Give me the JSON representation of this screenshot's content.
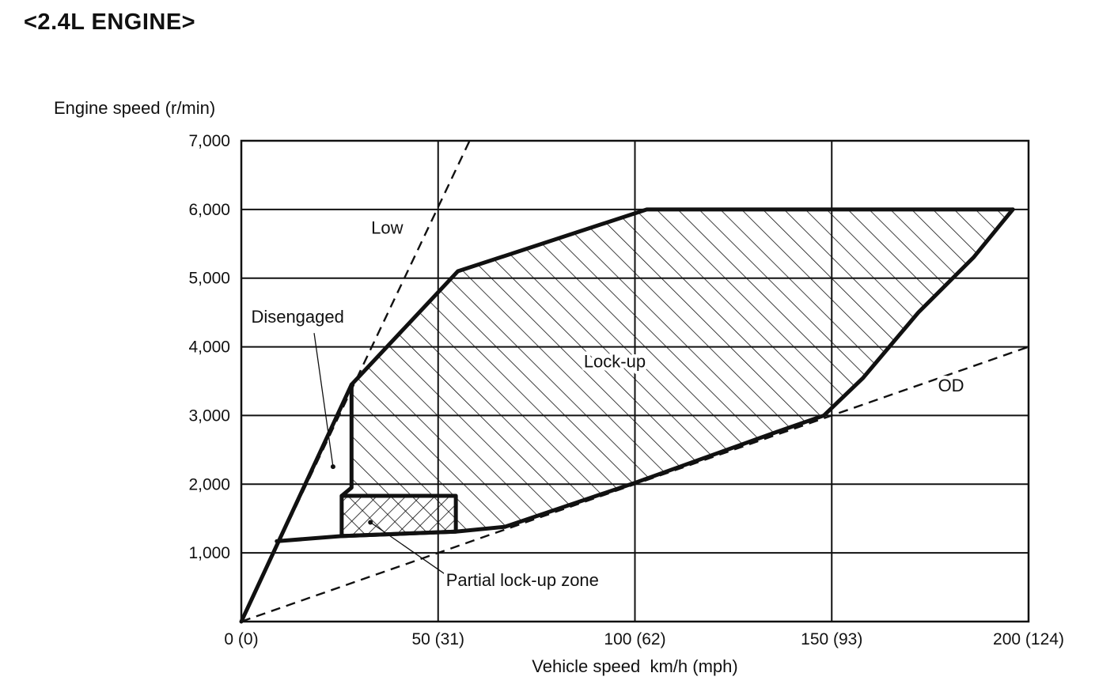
{
  "chart_data": {
    "type": "line",
    "title": "<2.4L ENGINE>",
    "xlabel": "Vehicle speed  km/h (mph)",
    "ylabel": "Engine speed (r/min)",
    "xlim": [
      0,
      200
    ],
    "ylim": [
      0,
      7000
    ],
    "grid": true,
    "legend": "none",
    "x_ticks": [
      {
        "value": 0,
        "label": "0 (0)"
      },
      {
        "value": 50,
        "label": "50 (31)"
      },
      {
        "value": 100,
        "label": "100 (62)"
      },
      {
        "value": 150,
        "label": "150 (93)"
      },
      {
        "value": 200,
        "label": "200 (124)"
      }
    ],
    "y_ticks": [
      {
        "value": 1000,
        "label": "1,000"
      },
      {
        "value": 2000,
        "label": "2,000"
      },
      {
        "value": 3000,
        "label": "3,000"
      },
      {
        "value": 4000,
        "label": "4,000"
      },
      {
        "value": 5000,
        "label": "5,000"
      },
      {
        "value": 6000,
        "label": "6,000"
      },
      {
        "value": 7000,
        "label": "7,000"
      }
    ],
    "regions": [
      {
        "name": "lock-up-zone",
        "label": "Lock-up",
        "fill": "hatch-down",
        "points": [
          [
            28,
            3450
          ],
          [
            55,
            5100
          ],
          [
            103,
            6000
          ],
          [
            196,
            6000
          ],
          [
            186,
            5300
          ],
          [
            172,
            4500
          ],
          [
            158,
            3550
          ],
          [
            148,
            3000
          ],
          [
            136,
            2760
          ],
          [
            100,
            2020
          ],
          [
            67,
            1380
          ],
          [
            54.5,
            1310
          ],
          [
            25.5,
            1245
          ],
          [
            25.5,
            1830
          ],
          [
            28,
            1950
          ]
        ]
      },
      {
        "name": "partial-lock-up-zone",
        "label": "Partial lock-up zone",
        "fill": "hatch-up",
        "points": [
          [
            25.5,
            1830
          ],
          [
            54.5,
            1830
          ],
          [
            54.5,
            1310
          ],
          [
            25.5,
            1245
          ]
        ]
      }
    ],
    "series": [
      {
        "name": "Low",
        "style": "dashed",
        "points": [
          [
            0,
            0
          ],
          [
            58,
            7000
          ]
        ]
      },
      {
        "name": "OD",
        "style": "dashed",
        "points": [
          [
            0,
            0
          ],
          [
            200,
            4000
          ]
        ]
      },
      {
        "name": "engagement-line",
        "style": "thick",
        "points": [
          [
            0,
            0
          ],
          [
            28,
            3450
          ]
        ]
      },
      {
        "name": "lockup-upper-boundary",
        "style": "thick",
        "points": [
          [
            28,
            3450
          ],
          [
            55,
            5100
          ],
          [
            103,
            6000
          ],
          [
            196,
            6000
          ]
        ]
      },
      {
        "name": "lockup-right-boundary",
        "style": "thick",
        "points": [
          [
            196,
            6000
          ],
          [
            186,
            5300
          ],
          [
            172,
            4500
          ],
          [
            158,
            3550
          ],
          [
            148,
            3000
          ],
          [
            136,
            2760
          ]
        ]
      },
      {
        "name": "lockup-lower-boundary",
        "style": "thick",
        "points": [
          [
            136,
            2760
          ],
          [
            100,
            2020
          ],
          [
            67,
            1380
          ]
        ]
      },
      {
        "name": "lockup-left-boundary",
        "style": "thick",
        "points": [
          [
            28,
            3450
          ],
          [
            28,
            1950
          ],
          [
            25.5,
            1830
          ]
        ]
      },
      {
        "name": "lower-limit-line",
        "style": "thick",
        "points": [
          [
            9,
            1170
          ],
          [
            25.5,
            1245
          ],
          [
            54.5,
            1310
          ],
          [
            67,
            1380
          ]
        ]
      },
      {
        "name": "partial-zone-outline",
        "style": "thick",
        "closed": true,
        "points": [
          [
            25.5,
            1830
          ],
          [
            54.5,
            1830
          ],
          [
            54.5,
            1310
          ],
          [
            25.5,
            1245
          ]
        ]
      }
    ],
    "annotations": [
      {
        "text": "Low",
        "x": 33,
        "y": 5650,
        "anchor": "start"
      },
      {
        "text": "OD",
        "x": 177,
        "y": 3350,
        "anchor": "start"
      },
      {
        "text": "Lock-up",
        "x": 87,
        "y": 3700,
        "anchor": "start"
      },
      {
        "text": "Disengaged",
        "x": 2.5,
        "y": 4350,
        "anchor": "start",
        "leader": {
          "from": [
            18.5,
            4200
          ],
          "to": [
            23.3,
            2255
          ],
          "dot": true
        }
      },
      {
        "text": "Partial lock-up zone",
        "x": 52,
        "y": 520,
        "anchor": "start",
        "leader": {
          "from": [
            51.5,
            700
          ],
          "to": [
            32.8,
            1445
          ],
          "dot": true
        }
      }
    ],
    "colors": {
      "line": "#111111",
      "background": "#ffffff"
    }
  }
}
